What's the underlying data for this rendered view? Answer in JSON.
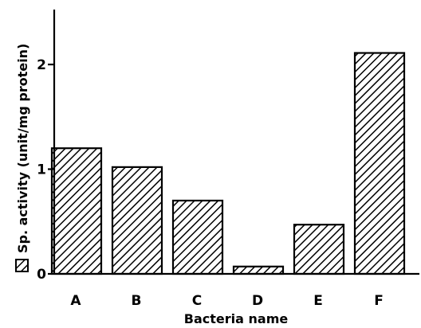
{
  "chart_data": {
    "type": "bar",
    "categories": [
      "A",
      "B",
      "C",
      "D",
      "E",
      "F"
    ],
    "values": [
      1.2,
      1.02,
      0.7,
      0.07,
      0.47,
      2.11
    ],
    "xlabel": "Bacteria name",
    "ylabel": "Sp. activity (unit/mg protein)",
    "ylim": [
      0,
      2.5
    ],
    "yticks": [
      0,
      1,
      2
    ],
    "ytick_labels": [
      "0",
      "1",
      "2"
    ],
    "legend_position": "along-y-axis",
    "bar_fill": "diagonal-hatch",
    "grid": false,
    "colors": {
      "ink": "#000000",
      "background": "#ffffff"
    }
  }
}
